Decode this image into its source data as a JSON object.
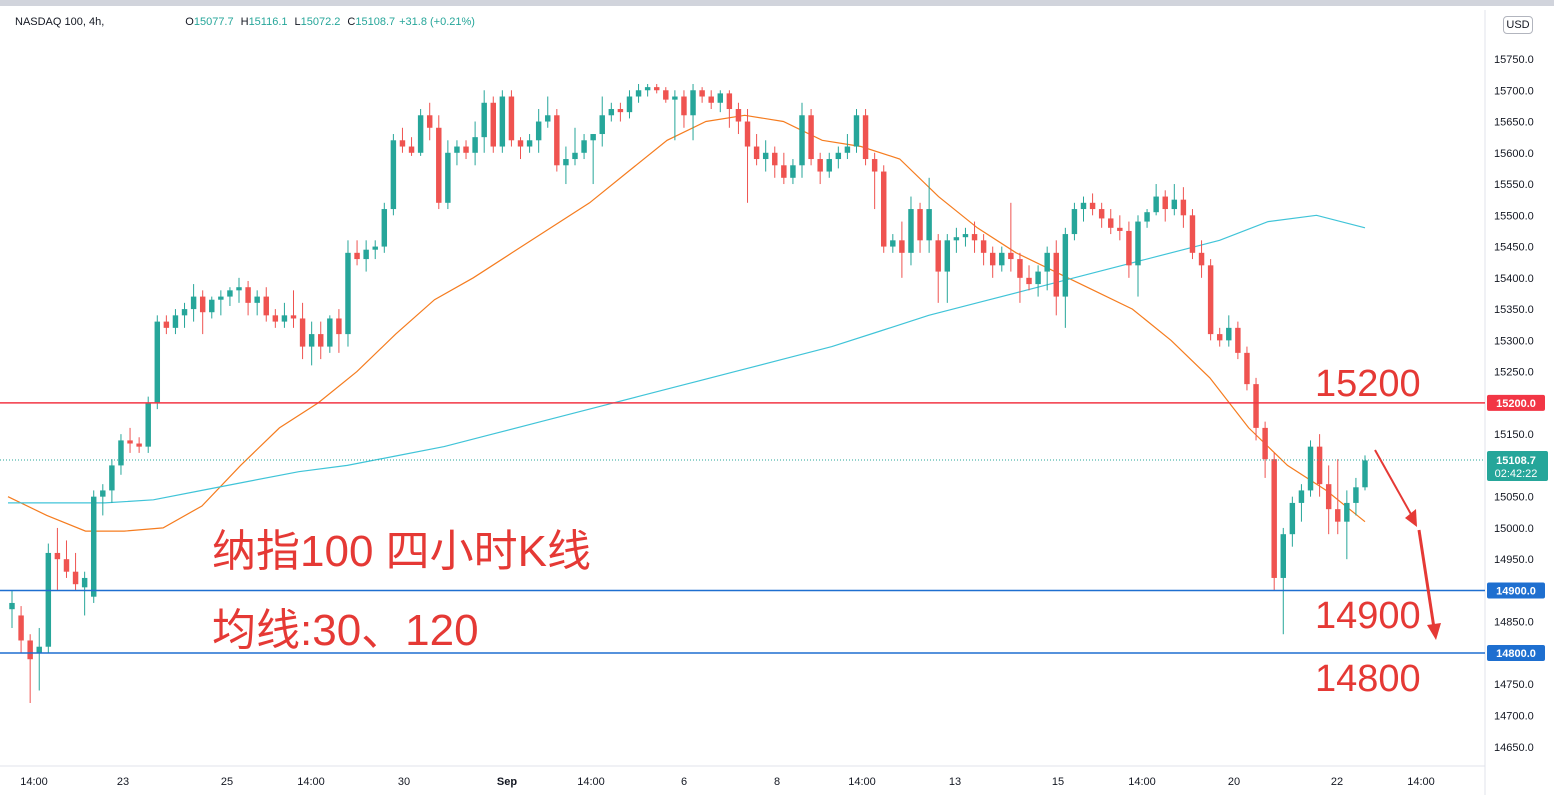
{
  "header": {
    "symbol": "NASDAQ 100, 4h,",
    "open_key": "O",
    "open": "15077.7",
    "high_key": "H",
    "high": "15116.1",
    "low_key": "L",
    "low": "15072.2",
    "close_key": "C",
    "close": "15108.7",
    "change": "+31.8 (+0.21%)",
    "currency": "USD"
  },
  "price_tag": {
    "price": "15108.7",
    "countdown": "02:42:22"
  },
  "annotations": {
    "title": "纳指100 四小时K线",
    "ma_text": "均线:30、120",
    "level_15200": "15200",
    "level_14900": "14900",
    "level_14800": "14800"
  },
  "colors": {
    "up": "#26a69a",
    "down": "#ef5350",
    "ma30": "#f57c1f",
    "ma120": "#40c4d8",
    "resistance": "#f23645",
    "support": "#1e6fd0",
    "annotation": "#e53935"
  },
  "chart_data": {
    "type": "candlestick",
    "title": "",
    "ylim": [
      14610,
      15800
    ],
    "y_ticks": [
      "15750.0",
      "15700.0",
      "15650.0",
      "15600.0",
      "15550.0",
      "15500.0",
      "15450.0",
      "15400.0",
      "15350.0",
      "15300.0",
      "15250.0",
      "15200.0",
      "15150.0",
      "15100.0",
      "15050.0",
      "15000.0",
      "14950.0",
      "14900.0",
      "14850.0",
      "14800.0",
      "14750.0",
      "14700.0",
      "14650.0"
    ],
    "x_ticks": [
      "14:00",
      "23",
      "25",
      "14:00",
      "30",
      "Sep",
      "14:00",
      "6",
      "8",
      "14:00",
      "13",
      "15",
      "14:00",
      "20",
      "22",
      "14:00"
    ],
    "horizontal_lines": [
      {
        "price": 15200.0,
        "label": "15200.0",
        "color": "#f23645"
      },
      {
        "price": 14900.0,
        "label": "14900.0",
        "color": "#1e6fd0"
      },
      {
        "price": 14800.0,
        "label": "14800.0",
        "color": "#1e6fd0"
      }
    ],
    "last_price": 15108.7,
    "candles": [
      [
        14870,
        14900,
        14840,
        14880
      ],
      [
        14860,
        14875,
        14800,
        14820
      ],
      [
        14820,
        14830,
        14720,
        14790
      ],
      [
        14800,
        14840,
        14740,
        14810
      ],
      [
        14810,
        14975,
        14800,
        14960
      ],
      [
        14960,
        15000,
        14900,
        14950
      ],
      [
        14950,
        14980,
        14920,
        14930
      ],
      [
        14930,
        14960,
        14900,
        14910
      ],
      [
        14905,
        14930,
        14860,
        14920
      ],
      [
        14890,
        15060,
        14880,
        15050
      ],
      [
        15050,
        15070,
        15020,
        15060
      ],
      [
        15060,
        15110,
        15040,
        15100
      ],
      [
        15100,
        15150,
        15085,
        15140
      ],
      [
        15140,
        15160,
        15120,
        15135
      ],
      [
        15135,
        15145,
        15120,
        15130
      ],
      [
        15130,
        15210,
        15120,
        15200
      ],
      [
        15200,
        15340,
        15190,
        15330
      ],
      [
        15330,
        15340,
        15310,
        15320
      ],
      [
        15320,
        15350,
        15310,
        15340
      ],
      [
        15340,
        15360,
        15320,
        15350
      ],
      [
        15350,
        15390,
        15330,
        15370
      ],
      [
        15370,
        15380,
        15310,
        15345
      ],
      [
        15345,
        15370,
        15335,
        15365
      ],
      [
        15365,
        15380,
        15340,
        15370
      ],
      [
        15370,
        15385,
        15355,
        15380
      ],
      [
        15380,
        15400,
        15360,
        15385
      ],
      [
        15385,
        15395,
        15340,
        15360
      ],
      [
        15360,
        15380,
        15340,
        15370
      ],
      [
        15370,
        15385,
        15330,
        15340
      ],
      [
        15340,
        15350,
        15320,
        15330
      ],
      [
        15330,
        15360,
        15320,
        15340
      ],
      [
        15340,
        15380,
        15320,
        15335
      ],
      [
        15335,
        15360,
        15270,
        15290
      ],
      [
        15290,
        15330,
        15260,
        15310
      ],
      [
        15310,
        15330,
        15270,
        15290
      ],
      [
        15290,
        15340,
        15280,
        15335
      ],
      [
        15335,
        15350,
        15280,
        15310
      ],
      [
        15310,
        15460,
        15290,
        15440
      ],
      [
        15440,
        15460,
        15420,
        15430
      ],
      [
        15430,
        15460,
        15410,
        15445
      ],
      [
        15445,
        15460,
        15430,
        15450
      ],
      [
        15450,
        15520,
        15440,
        15510
      ],
      [
        15510,
        15630,
        15500,
        15620
      ],
      [
        15620,
        15640,
        15600,
        15610
      ],
      [
        15610,
        15625,
        15595,
        15600
      ],
      [
        15600,
        15670,
        15595,
        15660
      ],
      [
        15660,
        15680,
        15620,
        15640
      ],
      [
        15640,
        15660,
        15510,
        15520
      ],
      [
        15520,
        15620,
        15510,
        15600
      ],
      [
        15600,
        15620,
        15580,
        15610
      ],
      [
        15610,
        15620,
        15590,
        15600
      ],
      [
        15600,
        15650,
        15580,
        15625
      ],
      [
        15625,
        15700,
        15600,
        15680
      ],
      [
        15680,
        15690,
        15600,
        15610
      ],
      [
        15610,
        15700,
        15600,
        15690
      ],
      [
        15690,
        15700,
        15610,
        15620
      ],
      [
        15620,
        15625,
        15590,
        15610
      ],
      [
        15610,
        15630,
        15600,
        15620
      ],
      [
        15620,
        15670,
        15600,
        15650
      ],
      [
        15650,
        15690,
        15640,
        15660
      ],
      [
        15660,
        15670,
        15570,
        15580
      ],
      [
        15580,
        15610,
        15550,
        15590
      ],
      [
        15590,
        15640,
        15580,
        15600
      ],
      [
        15600,
        15630,
        15590,
        15620
      ],
      [
        15620,
        15630,
        15550,
        15630
      ],
      [
        15630,
        15690,
        15610,
        15660
      ],
      [
        15660,
        15680,
        15650,
        15670
      ],
      [
        15670,
        15680,
        15650,
        15665
      ],
      [
        15665,
        15700,
        15655,
        15690
      ],
      [
        15690,
        15710,
        15680,
        15700
      ],
      [
        15700,
        15710,
        15690,
        15705
      ],
      [
        15705,
        15710,
        15695,
        15700
      ],
      [
        15700,
        15705,
        15680,
        15685
      ],
      [
        15685,
        15700,
        15620,
        15690
      ],
      [
        15690,
        15700,
        15640,
        15660
      ],
      [
        15660,
        15710,
        15620,
        15700
      ],
      [
        15700,
        15705,
        15680,
        15690
      ],
      [
        15690,
        15700,
        15670,
        15680
      ],
      [
        15680,
        15700,
        15665,
        15695
      ],
      [
        15695,
        15700,
        15640,
        15670
      ],
      [
        15670,
        15680,
        15630,
        15650
      ],
      [
        15650,
        15670,
        15520,
        15610
      ],
      [
        15610,
        15630,
        15580,
        15590
      ],
      [
        15590,
        15620,
        15570,
        15600
      ],
      [
        15600,
        15610,
        15560,
        15580
      ],
      [
        15580,
        15600,
        15550,
        15560
      ],
      [
        15560,
        15590,
        15550,
        15580
      ],
      [
        15580,
        15680,
        15560,
        15660
      ],
      [
        15660,
        15670,
        15580,
        15590
      ],
      [
        15590,
        15600,
        15550,
        15570
      ],
      [
        15570,
        15600,
        15560,
        15590
      ],
      [
        15590,
        15610,
        15575,
        15600
      ],
      [
        15600,
        15630,
        15590,
        15610
      ],
      [
        15610,
        15670,
        15600,
        15660
      ],
      [
        15660,
        15670,
        15580,
        15590
      ],
      [
        15590,
        15600,
        15510,
        15570
      ],
      [
        15570,
        15580,
        15440,
        15450
      ],
      [
        15450,
        15470,
        15440,
        15460
      ],
      [
        15460,
        15490,
        15400,
        15440
      ],
      [
        15440,
        15530,
        15420,
        15510
      ],
      [
        15510,
        15520,
        15440,
        15460
      ],
      [
        15460,
        15560,
        15440,
        15510
      ],
      [
        15460,
        15470,
        15360,
        15410
      ],
      [
        15410,
        15470,
        15360,
        15460
      ],
      [
        15460,
        15480,
        15440,
        15465
      ],
      [
        15465,
        15480,
        15450,
        15470
      ],
      [
        15470,
        15490,
        15440,
        15460
      ],
      [
        15460,
        15470,
        15420,
        15440
      ],
      [
        15440,
        15450,
        15400,
        15420
      ],
      [
        15420,
        15450,
        15410,
        15440
      ],
      [
        15440,
        15520,
        15410,
        15430
      ],
      [
        15430,
        15440,
        15360,
        15400
      ],
      [
        15400,
        15420,
        15380,
        15390
      ],
      [
        15390,
        15420,
        15370,
        15410
      ],
      [
        15410,
        15450,
        15380,
        15440
      ],
      [
        15440,
        15460,
        15340,
        15370
      ],
      [
        15370,
        15480,
        15320,
        15470
      ],
      [
        15470,
        15520,
        15460,
        15510
      ],
      [
        15510,
        15530,
        15490,
        15520
      ],
      [
        15520,
        15535,
        15500,
        15510
      ],
      [
        15510,
        15520,
        15480,
        15495
      ],
      [
        15495,
        15510,
        15470,
        15480
      ],
      [
        15480,
        15500,
        15460,
        15475
      ],
      [
        15475,
        15490,
        15400,
        15420
      ],
      [
        15420,
        15500,
        15370,
        15490
      ],
      [
        15490,
        15510,
        15480,
        15505
      ],
      [
        15505,
        15550,
        15500,
        15530
      ],
      [
        15530,
        15540,
        15490,
        15510
      ],
      [
        15510,
        15550,
        15500,
        15525
      ],
      [
        15525,
        15545,
        15480,
        15500
      ],
      [
        15500,
        15510,
        15430,
        15440
      ],
      [
        15440,
        15460,
        15400,
        15420
      ],
      [
        15420,
        15430,
        15300,
        15310
      ],
      [
        15310,
        15320,
        15290,
        15300
      ],
      [
        15300,
        15340,
        15290,
        15320
      ],
      [
        15320,
        15330,
        15270,
        15280
      ],
      [
        15280,
        15290,
        15220,
        15230
      ],
      [
        15230,
        15240,
        15140,
        15160
      ],
      [
        15160,
        15170,
        15080,
        15110
      ],
      [
        15110,
        15120,
        14900,
        14920
      ],
      [
        14920,
        15000,
        14830,
        14990
      ],
      [
        14990,
        15050,
        14970,
        15040
      ],
      [
        15040,
        15070,
        15010,
        15060
      ],
      [
        15060,
        15140,
        15050,
        15130
      ],
      [
        15130,
        15150,
        15050,
        15070
      ],
      [
        15070,
        15100,
        14990,
        15030
      ],
      [
        15030,
        15110,
        14990,
        15010
      ],
      [
        15010,
        15060,
        14950,
        15040
      ],
      [
        15040,
        15080,
        15020,
        15065
      ],
      [
        15065,
        15116,
        15060,
        15108
      ]
    ],
    "series": [
      {
        "name": "MA30",
        "values": [
          15050,
          15020,
          14995,
          14995,
          15000,
          15035,
          15100,
          15160,
          15200,
          15250,
          15310,
          15365,
          15400,
          15440,
          15480,
          15520,
          15570,
          15620,
          15650,
          15660,
          15650,
          15620,
          15610,
          15590,
          15530,
          15480,
          15440,
          15410,
          15380,
          15350,
          15300,
          15240,
          15160,
          15100,
          15060,
          15010
        ]
      },
      {
        "name": "MA120",
        "values": [
          15040,
          15040,
          15040,
          15045,
          15060,
          15075,
          15090,
          15100,
          15115,
          15130,
          15150,
          15170,
          15190,
          15210,
          15230,
          15250,
          15270,
          15290,
          15315,
          15340,
          15360,
          15380,
          15400,
          15420,
          15440,
          15460,
          15490,
          15500,
          15480
        ]
      }
    ]
  }
}
